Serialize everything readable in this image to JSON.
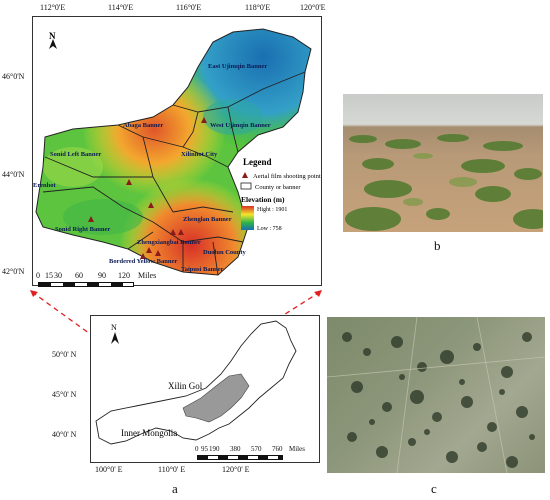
{
  "map_a": {
    "lon_ticks": [
      "112°0'E",
      "114°0'E",
      "116°0'E",
      "118°0'E",
      "120°0'E"
    ],
    "lat_ticks": [
      "46°0'N",
      "44°0'N",
      "42°0'N"
    ],
    "north": "N",
    "place_names": {
      "east_ujimqin": "East Ujimqin Banner",
      "west_ujimqin": "West Ujimqin Banner",
      "abaga": "Abaga Banner",
      "sonid_left": "Sonid Left Banner",
      "xilinhot": "Xilinhot City",
      "erenhot": "Erenhot",
      "sonid_right": "Sonid Right Banner",
      "zhenglan": "Zhenglan Banner",
      "zhengxiangbai": "Zhengxiangbai Banner",
      "duolun": "Duolun County",
      "bordered_yellow": "Bordered Yellow Banner",
      "taipusi": "Taipusi Banner"
    },
    "legend": {
      "title": "Legend",
      "shooting_point": "Aerial film shooting point",
      "county": "County or banner",
      "elevation_title": "Elevation (m)",
      "high": "Hight : 1901",
      "low": "Low : 758"
    },
    "scale_labels": [
      "0",
      "15",
      "30",
      "60",
      "90",
      "120"
    ],
    "scale_unit": "Miles",
    "colors": {
      "high": "#d73027",
      "mid": "#f5e52a",
      "low": "#1a6fb0",
      "green": "#2cb34a"
    }
  },
  "map_b": {
    "lon_ticks": [
      "100°0' E",
      "110°0' E",
      "120°0' E"
    ],
    "lat_ticks": [
      "50°0' N",
      "45°0' N",
      "40°0' N"
    ],
    "north": "N",
    "xilin_gol": "Xilin Gol",
    "inner_mongolia": "Inner Mongolia",
    "scale_labels": [
      "0",
      "95",
      "190",
      "380",
      "570",
      "760"
    ],
    "scale_unit": "Miles"
  },
  "panel_labels": {
    "a": "a",
    "b": "b",
    "c": "c"
  }
}
